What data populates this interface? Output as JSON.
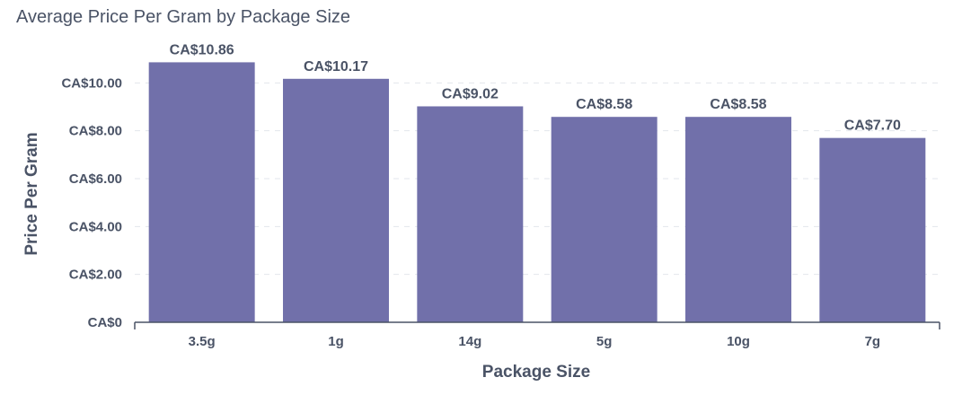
{
  "chart_data": {
    "type": "bar",
    "title": "Average Price Per Gram by Package Size",
    "xlabel": "Package Size",
    "ylabel": "Price Per Gram",
    "categories": [
      "3.5g",
      "1g",
      "14g",
      "5g",
      "10g",
      "7g"
    ],
    "values": [
      10.86,
      10.17,
      9.02,
      8.58,
      8.58,
      7.7
    ],
    "value_labels": [
      "CA$10.86",
      "CA$10.17",
      "CA$9.02",
      "CA$8.58",
      "CA$8.58",
      "CA$7.70"
    ],
    "ylim": [
      0,
      11.4
    ],
    "yticks": [
      0,
      2,
      4,
      6,
      8,
      10
    ],
    "ytick_labels": [
      "CA$0",
      "CA$2.00",
      "CA$4.00",
      "CA$6.00",
      "CA$8.00",
      "CA$10.00"
    ],
    "grid": true,
    "bar_color": "#7170aa",
    "text_color": "#4a5366",
    "grid_color": "#e3e6ec"
  }
}
